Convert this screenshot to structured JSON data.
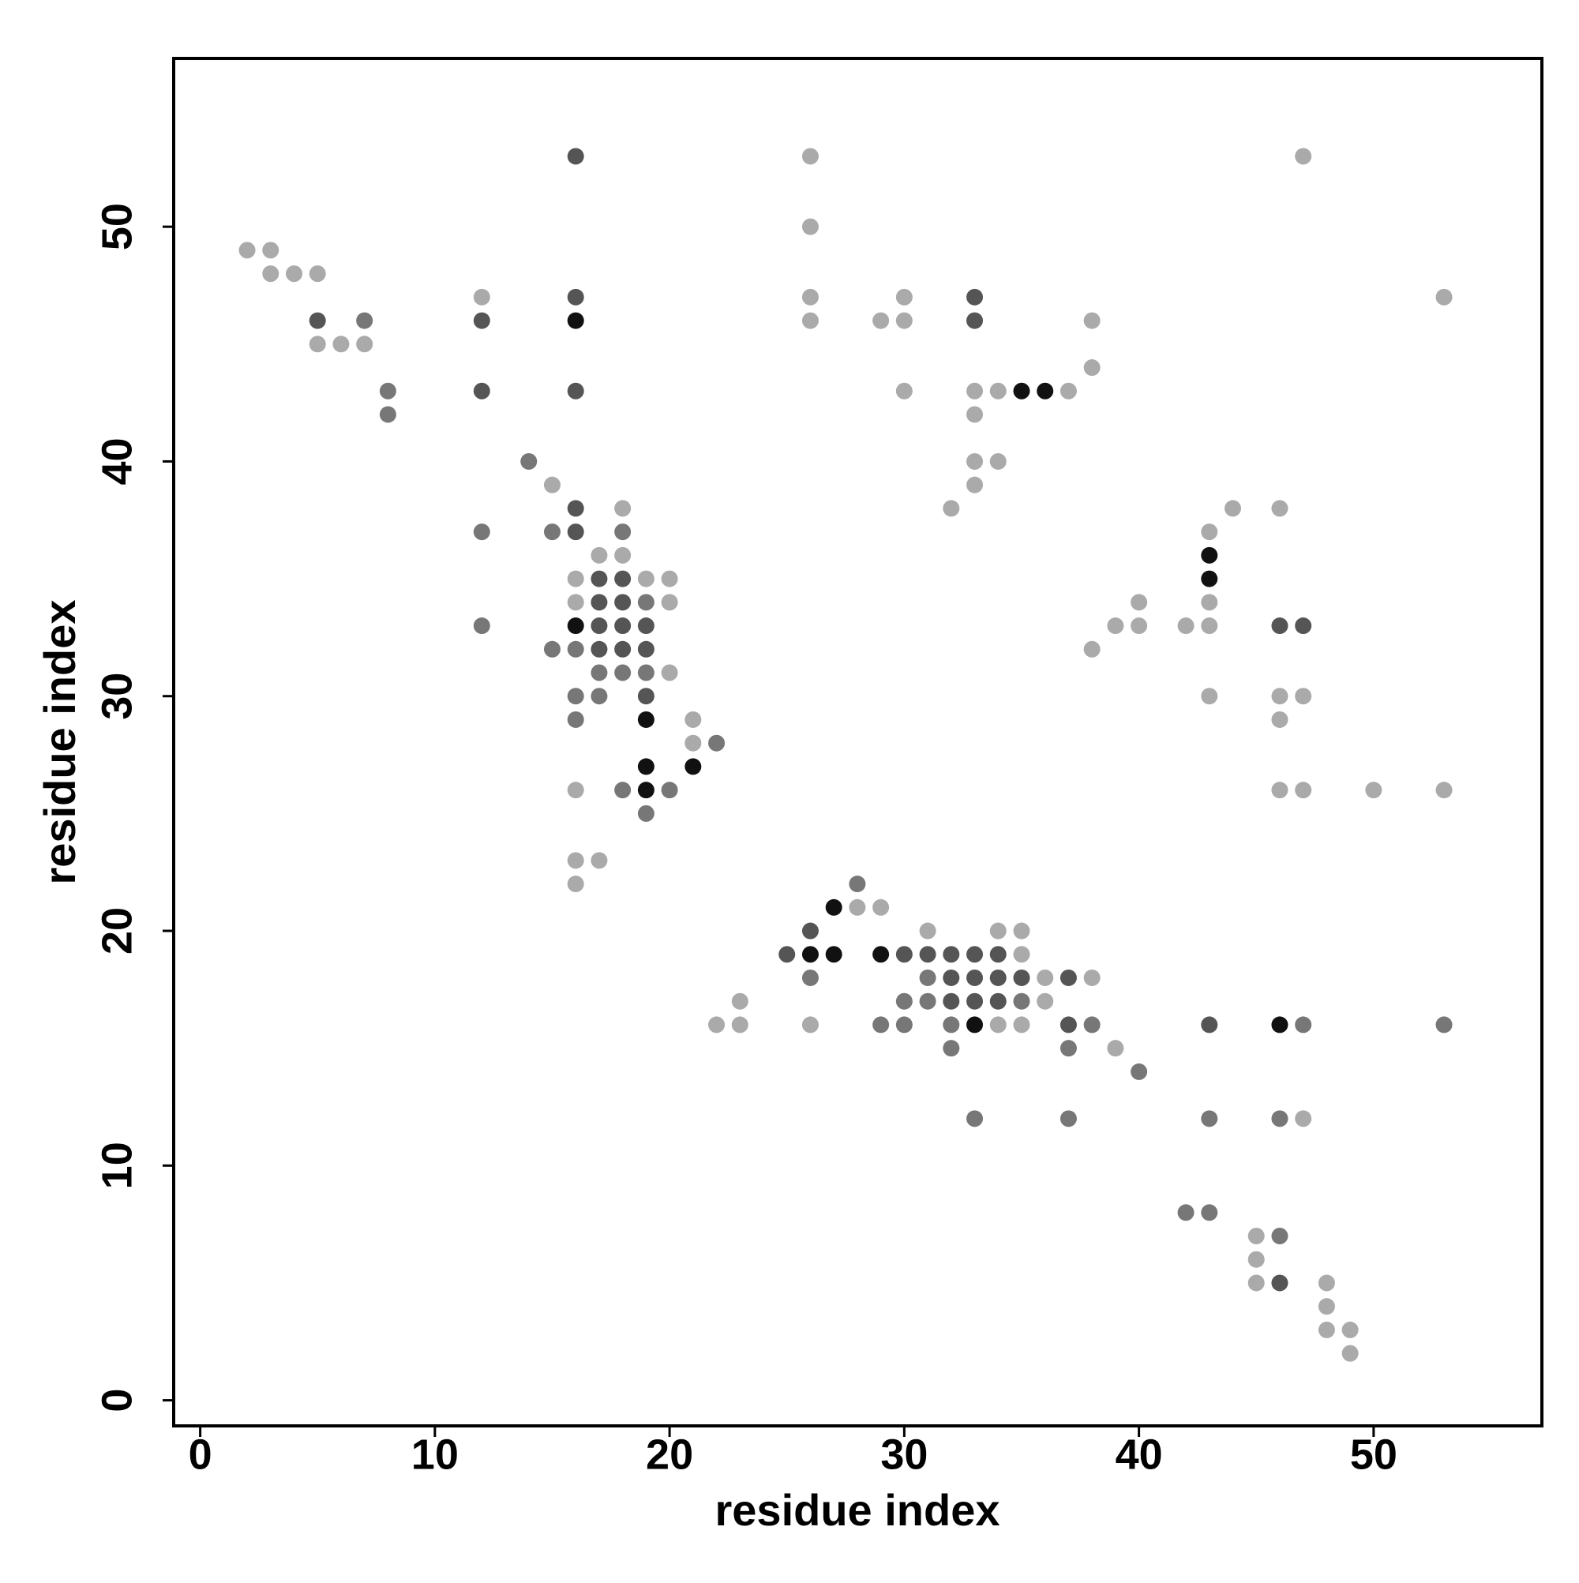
{
  "chart_data": {
    "type": "scatter",
    "x_label": "residue index",
    "y_label": "residue index",
    "x": [
      16,
      26,
      47,
      26,
      2,
      3,
      3,
      4,
      5,
      12,
      16,
      26,
      30,
      33,
      53,
      5,
      7,
      12,
      16,
      26,
      29,
      30,
      33,
      38,
      5,
      6,
      7,
      38,
      8,
      12,
      16,
      30,
      33,
      34,
      35,
      36,
      37,
      8,
      33,
      14,
      33,
      34,
      15,
      33,
      16,
      18,
      32,
      44,
      46,
      12,
      15,
      16,
      18,
      43,
      17,
      18,
      43,
      16,
      17,
      18,
      19,
      20,
      43,
      16,
      17,
      18,
      19,
      20,
      40,
      43,
      12,
      16,
      17,
      18,
      19,
      39,
      40,
      42,
      43,
      46,
      47,
      15,
      16,
      17,
      18,
      19,
      38,
      17,
      18,
      19,
      20,
      16,
      17,
      19,
      43,
      46,
      47,
      16,
      19,
      21,
      46,
      21,
      22,
      19,
      21,
      16,
      18,
      19,
      20,
      46,
      47,
      50,
      53,
      19,
      16,
      17,
      16,
      28,
      27,
      28,
      29,
      26,
      31,
      34,
      35,
      25,
      26,
      27,
      29,
      30,
      31,
      32,
      33,
      34,
      35,
      26,
      31,
      32,
      33,
      34,
      35,
      36,
      37,
      38,
      23,
      30,
      31,
      32,
      33,
      34,
      35,
      36,
      22,
      23,
      26,
      29,
      30,
      32,
      33,
      34,
      35,
      37,
      38,
      43,
      46,
      47,
      53,
      32,
      37,
      39,
      40,
      33,
      37,
      43,
      46,
      47,
      42,
      43,
      45,
      46,
      45,
      45,
      46,
      48,
      48,
      48,
      49,
      49
    ],
    "y": [
      53,
      53,
      53,
      50,
      49,
      49,
      48,
      48,
      48,
      47,
      47,
      47,
      47,
      47,
      47,
      46,
      46,
      46,
      46,
      46,
      46,
      46,
      46,
      46,
      45,
      45,
      45,
      44,
      43,
      43,
      43,
      43,
      43,
      43,
      43,
      43,
      43,
      42,
      42,
      40,
      40,
      40,
      39,
      39,
      38,
      38,
      38,
      38,
      38,
      37,
      37,
      37,
      37,
      37,
      36,
      36,
      36,
      35,
      35,
      35,
      35,
      35,
      35,
      34,
      34,
      34,
      34,
      34,
      34,
      34,
      33,
      33,
      33,
      33,
      33,
      33,
      33,
      33,
      33,
      33,
      33,
      32,
      32,
      32,
      32,
      32,
      32,
      31,
      31,
      31,
      31,
      30,
      30,
      30,
      30,
      30,
      30,
      29,
      29,
      29,
      29,
      28,
      28,
      27,
      27,
      26,
      26,
      26,
      26,
      26,
      26,
      26,
      26,
      25,
      23,
      23,
      22,
      22,
      21,
      21,
      21,
      20,
      20,
      20,
      20,
      19,
      19,
      19,
      19,
      19,
      19,
      19,
      19,
      19,
      19,
      18,
      18,
      18,
      18,
      18,
      18,
      18,
      18,
      18,
      17,
      17,
      17,
      17,
      17,
      17,
      17,
      17,
      16,
      16,
      16,
      16,
      16,
      16,
      16,
      16,
      16,
      16,
      16,
      16,
      16,
      16,
      16,
      15,
      15,
      15,
      14,
      12,
      12,
      12,
      12,
      12,
      8,
      8,
      7,
      7,
      6,
      5,
      5,
      5,
      4,
      3,
      3,
      2
    ],
    "colors": [
      "#555555",
      "#aaaaaa",
      "#aaaaaa",
      "#aaaaaa",
      "#aaaaaa",
      "#aaaaaa",
      "#aaaaaa",
      "#aaaaaa",
      "#aaaaaa",
      "#aaaaaa",
      "#555555",
      "#aaaaaa",
      "#aaaaaa",
      "#555555",
      "#aaaaaa",
      "#555555",
      "#777777",
      "#555555",
      "#111111",
      "#aaaaaa",
      "#aaaaaa",
      "#aaaaaa",
      "#555555",
      "#aaaaaa",
      "#aaaaaa",
      "#aaaaaa",
      "#aaaaaa",
      "#aaaaaa",
      "#777777",
      "#555555",
      "#555555",
      "#aaaaaa",
      "#aaaaaa",
      "#aaaaaa",
      "#111111",
      "#111111",
      "#aaaaaa",
      "#777777",
      "#aaaaaa",
      "#777777",
      "#aaaaaa",
      "#aaaaaa",
      "#aaaaaa",
      "#aaaaaa",
      "#555555",
      "#aaaaaa",
      "#aaaaaa",
      "#aaaaaa",
      "#aaaaaa",
      "#777777",
      "#777777",
      "#555555",
      "#777777",
      "#aaaaaa",
      "#aaaaaa",
      "#aaaaaa",
      "#111111",
      "#aaaaaa",
      "#555555",
      "#555555",
      "#aaaaaa",
      "#aaaaaa",
      "#111111",
      "#aaaaaa",
      "#555555",
      "#555555",
      "#777777",
      "#aaaaaa",
      "#aaaaaa",
      "#aaaaaa",
      "#777777",
      "#111111",
      "#555555",
      "#555555",
      "#555555",
      "#aaaaaa",
      "#aaaaaa",
      "#aaaaaa",
      "#aaaaaa",
      "#555555",
      "#555555",
      "#777777",
      "#777777",
      "#555555",
      "#555555",
      "#555555",
      "#aaaaaa",
      "#777777",
      "#777777",
      "#777777",
      "#aaaaaa",
      "#777777",
      "#777777",
      "#555555",
      "#aaaaaa",
      "#aaaaaa",
      "#aaaaaa",
      "#777777",
      "#111111",
      "#aaaaaa",
      "#aaaaaa",
      "#aaaaaa",
      "#777777",
      "#111111",
      "#111111",
      "#aaaaaa",
      "#777777",
      "#111111",
      "#777777",
      "#aaaaaa",
      "#aaaaaa",
      "#aaaaaa",
      "#aaaaaa",
      "#777777",
      "#aaaaaa",
      "#aaaaaa",
      "#aaaaaa",
      "#777777",
      "#111111",
      "#aaaaaa",
      "#aaaaaa",
      "#555555",
      "#aaaaaa",
      "#aaaaaa",
      "#aaaaaa",
      "#555555",
      "#111111",
      "#111111",
      "#111111",
      "#555555",
      "#555555",
      "#555555",
      "#555555",
      "#555555",
      "#aaaaaa",
      "#777777",
      "#777777",
      "#555555",
      "#555555",
      "#555555",
      "#555555",
      "#aaaaaa",
      "#555555",
      "#aaaaaa",
      "#aaaaaa",
      "#777777",
      "#777777",
      "#555555",
      "#555555",
      "#555555",
      "#777777",
      "#aaaaaa",
      "#aaaaaa",
      "#aaaaaa",
      "#aaaaaa",
      "#777777",
      "#777777",
      "#777777",
      "#111111",
      "#aaaaaa",
      "#aaaaaa",
      "#555555",
      "#777777",
      "#555555",
      "#111111",
      "#777777",
      "#777777",
      "#777777",
      "#777777",
      "#aaaaaa",
      "#777777",
      "#777777",
      "#777777",
      "#777777",
      "#777777",
      "#aaaaaa",
      "#777777",
      "#777777",
      "#aaaaaa",
      "#777777",
      "#aaaaaa",
      "#aaaaaa",
      "#555555",
      "#aaaaaa",
      "#aaaaaa",
      "#aaaaaa",
      "#aaaaaa",
      "#aaaaaa"
    ],
    "xlim": [
      -1.13,
      57.17
    ],
    "ylim": [
      -1.09,
      57.17
    ],
    "xticks": [
      0,
      10,
      20,
      30,
      40,
      50
    ],
    "yticks": [
      0,
      10,
      20,
      30,
      40,
      50
    ]
  }
}
